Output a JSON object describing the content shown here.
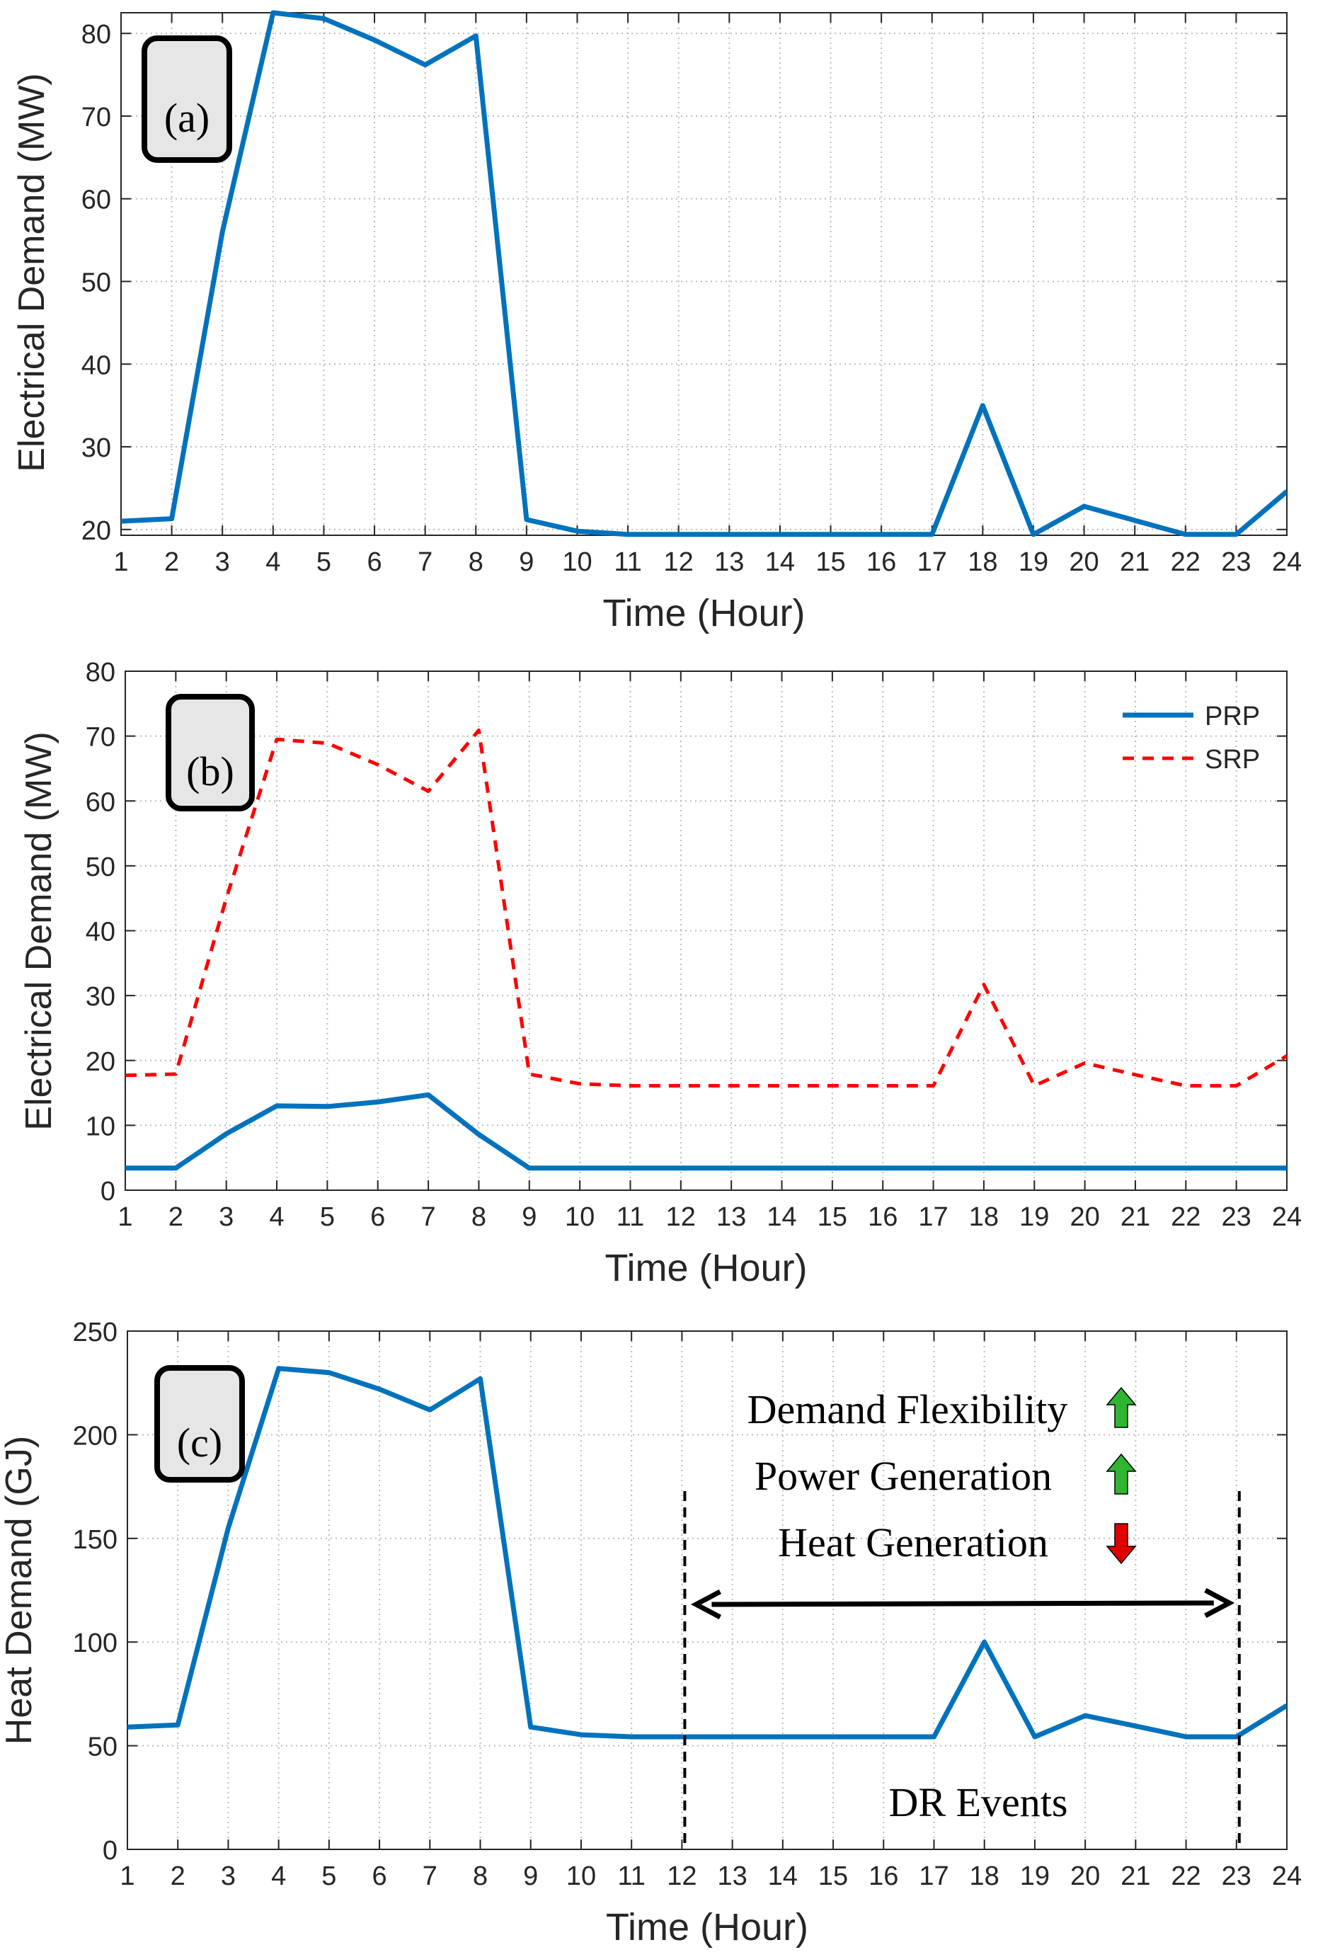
{
  "colors": {
    "prp": "#0072BD",
    "srp": "#FF0000",
    "axis": "#262626",
    "grid": "#000000",
    "label_box": "#E6E6E6",
    "arrow_up": "#2FB52F",
    "arrow_down": "#E00000"
  },
  "chart_data": [
    {
      "type": "line",
      "panel_label": "(a)",
      "xlabel": "Time (Hour)",
      "ylabel": "Electrical Demand (MW)",
      "xlim": [
        1,
        24
      ],
      "ylim": [
        19.3,
        82.5
      ],
      "yticks": [
        20,
        30,
        40,
        50,
        60,
        70,
        80
      ],
      "x": [
        1,
        2,
        3,
        4,
        5,
        6,
        7,
        8,
        9,
        10,
        11,
        12,
        13,
        14,
        15,
        16,
        17,
        18,
        19,
        20,
        21,
        22,
        23,
        24
      ],
      "grid": true,
      "legend": "none",
      "series": [
        {
          "key": "prp",
          "style": "solid",
          "values": [
            21,
            21.3,
            56,
            82.5,
            81.8,
            79.2,
            76.2,
            79.7,
            21.2,
            19.8,
            19.4,
            19.4,
            19.4,
            19.4,
            19.4,
            19.4,
            19.4,
            35,
            19.4,
            22.8,
            21.1,
            19.4,
            19.4,
            24.6
          ]
        }
      ]
    },
    {
      "type": "line",
      "panel_label": "(b)",
      "xlabel": "Time (Hour)",
      "ylabel": "Electrical Demand (MW)",
      "xlim": [
        1,
        24
      ],
      "ylim": [
        0,
        80
      ],
      "yticks": [
        0,
        10,
        20,
        30,
        40,
        50,
        60,
        70,
        80
      ],
      "x": [
        1,
        2,
        3,
        4,
        5,
        6,
        7,
        8,
        9,
        10,
        11,
        12,
        13,
        14,
        15,
        16,
        17,
        18,
        19,
        20,
        21,
        22,
        23,
        24
      ],
      "grid": true,
      "legend": "top-right",
      "series": [
        {
          "key": "prp",
          "name": "PRP",
          "style": "solid",
          "values": [
            3.4,
            3.4,
            8.7,
            13,
            12.9,
            13.6,
            14.7,
            8.6,
            3.4,
            3.4,
            3.4,
            3.4,
            3.4,
            3.4,
            3.4,
            3.4,
            3.4,
            3.4,
            3.4,
            3.4,
            3.4,
            3.4,
            3.4,
            3.4
          ]
        },
        {
          "key": "srp",
          "name": "SRP",
          "style": "dashed",
          "values": [
            17.7,
            17.9,
            45,
            69.5,
            68.9,
            65.6,
            61.5,
            70.9,
            17.9,
            16.4,
            16.1,
            16.1,
            16.1,
            16.1,
            16.1,
            16.1,
            16.1,
            31.7,
            16.1,
            19.6,
            17.8,
            16.1,
            16.1,
            20.7
          ]
        }
      ]
    },
    {
      "type": "line",
      "panel_label": "(c)",
      "xlabel": "Time (Hour)",
      "ylabel": "Heat Demand (GJ)",
      "xlim": [
        1,
        24
      ],
      "ylim": [
        0,
        250
      ],
      "yticks": [
        0,
        50,
        100,
        150,
        200,
        250
      ],
      "x": [
        1,
        2,
        3,
        4,
        5,
        6,
        7,
        8,
        9,
        10,
        11,
        12,
        13,
        14,
        15,
        16,
        17,
        18,
        19,
        20,
        21,
        22,
        23,
        24
      ],
      "grid": true,
      "legend": "none",
      "series": [
        {
          "key": "prp",
          "style": "solid",
          "values": [
            59,
            60,
            155,
            232,
            230,
            222,
            212,
            227,
            59,
            55.3,
            54.3,
            54.3,
            54.3,
            54.3,
            54.3,
            54.3,
            54.3,
            100,
            54.3,
            64.5,
            59.5,
            54.3,
            54.3,
            69.4
          ]
        }
      ],
      "annotations": {
        "lines": [
          "Demand Flexibility",
          "Power Generation",
          "Heat Generation"
        ],
        "arrows": [
          "up",
          "up",
          "down"
        ],
        "event_label": "DR Events",
        "event_range": [
          12,
          23
        ]
      }
    }
  ]
}
